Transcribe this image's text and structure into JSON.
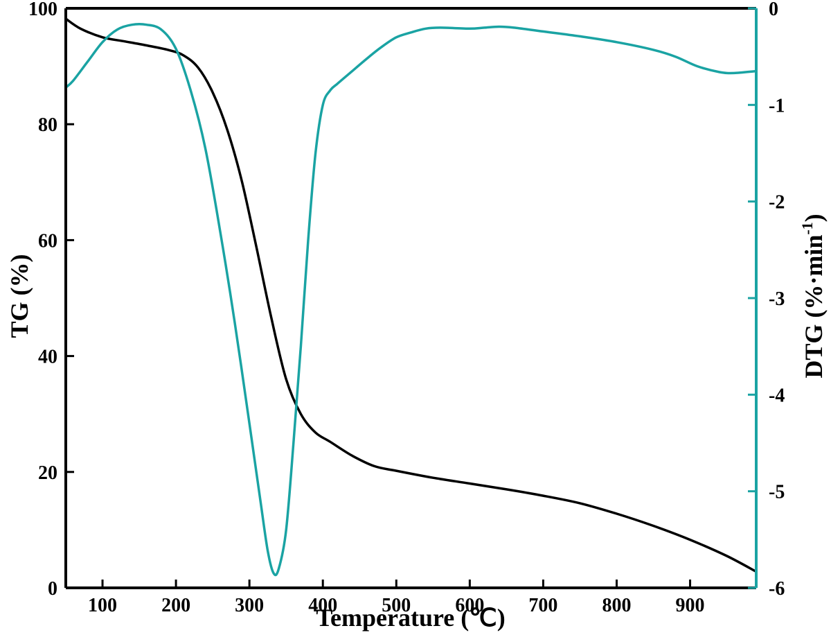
{
  "chart_data": {
    "type": "line",
    "title": "",
    "xlabel": "Temperature (℃)",
    "ylabel_left": "TG (%)",
    "ylabel_right_prefix": "DTG (%·min",
    "ylabel_right_sup": "-1",
    "ylabel_right_suffix": ")",
    "xlim": [
      50,
      990
    ],
    "ylim_left": [
      0,
      100
    ],
    "ylim_right": [
      -6,
      0
    ],
    "xticks": [
      100,
      200,
      300,
      400,
      500,
      600,
      700,
      800,
      900
    ],
    "yticks_left": [
      0,
      20,
      40,
      60,
      80,
      100
    ],
    "yticks_right": [
      -6,
      -5,
      -4,
      -3,
      -2,
      -1,
      0
    ],
    "grid": false,
    "colors": {
      "TG": "#000000",
      "DTG": "#1aa3a3"
    },
    "series": [
      {
        "key": "TG",
        "axis": "left",
        "x": [
          50,
          70,
          100,
          130,
          160,
          190,
          210,
          230,
          250,
          270,
          290,
          310,
          330,
          350,
          370,
          390,
          410,
          440,
          470,
          500,
          550,
          600,
          650,
          700,
          750,
          800,
          850,
          900,
          950,
          990
        ],
        "values": [
          98.2,
          96.5,
          95.0,
          94.3,
          93.6,
          92.8,
          91.9,
          89.8,
          85.5,
          79.0,
          70.0,
          58.5,
          46.5,
          36.0,
          30.0,
          26.8,
          25.2,
          22.8,
          21.0,
          20.2,
          19.0,
          18.0,
          17.0,
          15.9,
          14.6,
          12.8,
          10.7,
          8.3,
          5.5,
          2.8
        ]
      },
      {
        "key": "DTG",
        "axis": "right",
        "x": [
          50,
          60,
          80,
          100,
          120,
          140,
          160,
          180,
          200,
          220,
          240,
          260,
          280,
          300,
          315,
          325,
          333,
          340,
          350,
          360,
          370,
          380,
          390,
          400,
          410,
          420,
          440,
          460,
          480,
          500,
          520,
          540,
          560,
          600,
          620,
          640,
          660,
          700,
          750,
          800,
          850,
          880,
          910,
          940,
          960,
          990
        ],
        "values": [
          -0.82,
          -0.75,
          -0.55,
          -0.35,
          -0.22,
          -0.17,
          -0.17,
          -0.22,
          -0.42,
          -0.85,
          -1.45,
          -2.3,
          -3.25,
          -4.3,
          -5.1,
          -5.62,
          -5.85,
          -5.8,
          -5.4,
          -4.5,
          -3.5,
          -2.4,
          -1.5,
          -1.0,
          -0.85,
          -0.78,
          -0.65,
          -0.52,
          -0.4,
          -0.3,
          -0.25,
          -0.21,
          -0.2,
          -0.21,
          -0.2,
          -0.19,
          -0.2,
          -0.24,
          -0.29,
          -0.35,
          -0.43,
          -0.5,
          -0.6,
          -0.66,
          -0.67,
          -0.65
        ]
      }
    ]
  }
}
